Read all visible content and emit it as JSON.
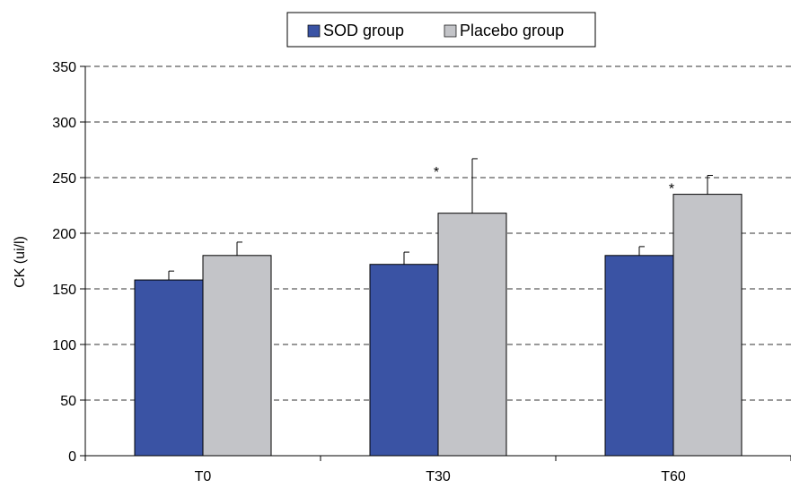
{
  "chart_data": {
    "type": "bar",
    "categories": [
      "T0",
      "T30",
      "T60"
    ],
    "series": [
      {
        "name": "SOD group",
        "values": [
          158,
          172,
          180
        ],
        "errors": [
          8,
          11,
          8
        ],
        "color": "#3a53a4"
      },
      {
        "name": "Placebo group",
        "values": [
          180,
          218,
          235
        ],
        "errors": [
          12,
          49,
          17
        ],
        "color": "#c3c4c8"
      }
    ],
    "title": "",
    "xlabel": "",
    "ylabel": "CK (ui/l)",
    "ylim": [
      0,
      350
    ],
    "yticks": [
      0,
      50,
      100,
      150,
      200,
      250,
      300,
      350
    ],
    "grid": "horizontal dashed",
    "legend_position": "top",
    "annotations": [
      {
        "category": "T30",
        "text": "*"
      },
      {
        "category": "T60",
        "text": "*"
      }
    ]
  }
}
